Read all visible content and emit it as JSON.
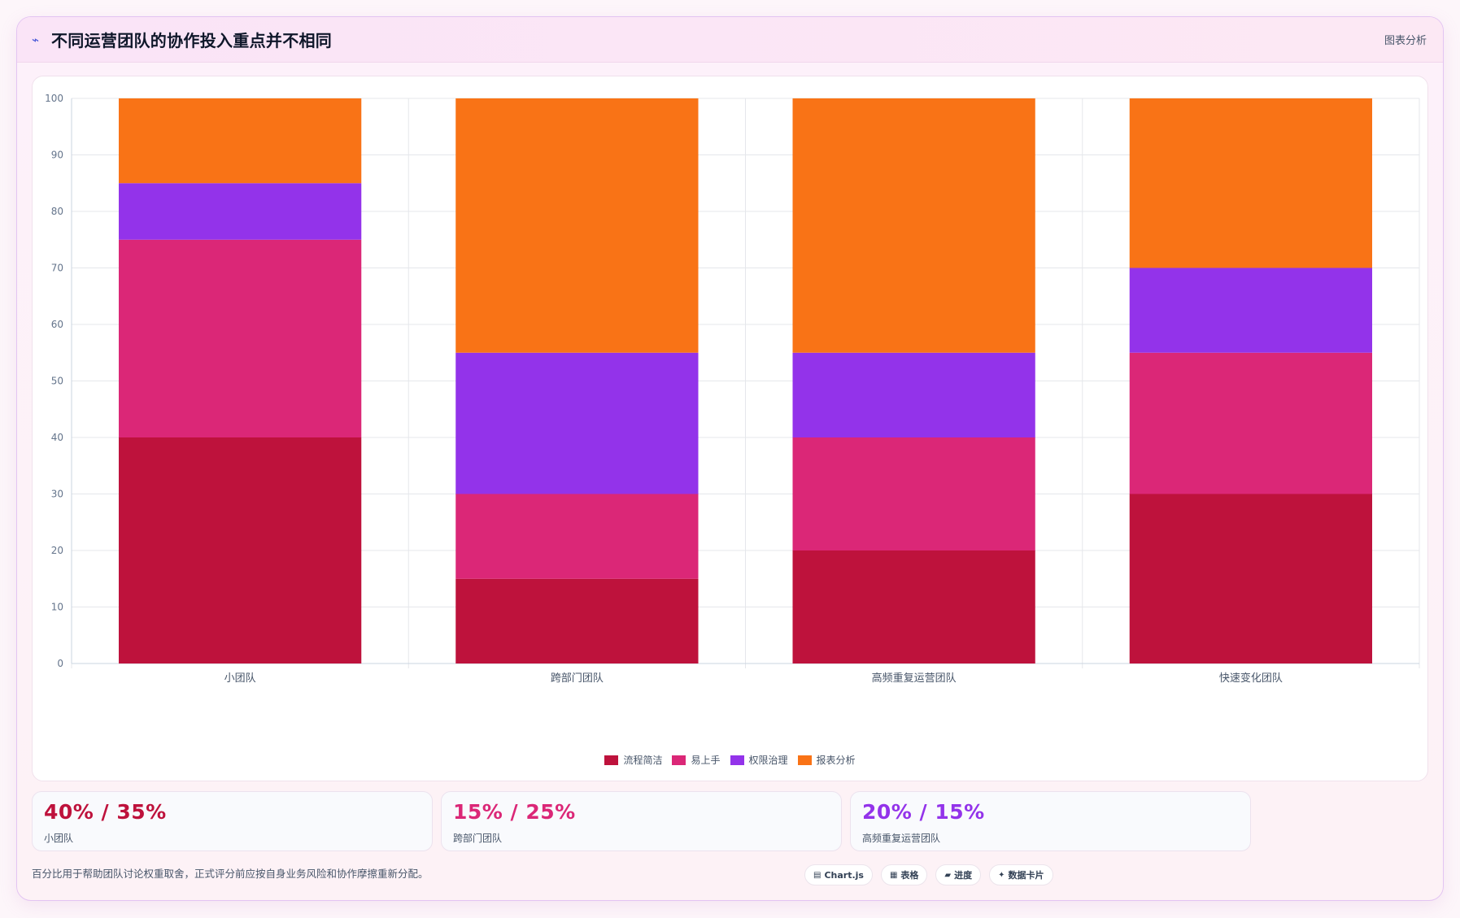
{
  "header": {
    "title": "不同运营团队的协作投入重点并不相同",
    "tag": "图表分析",
    "icon": "trend-line-icon"
  },
  "colors": {
    "series": [
      "#be123c",
      "#db2777",
      "#9333ea",
      "#f97316"
    ],
    "grid": "#e5e7eb",
    "axis_text": "#64748b"
  },
  "chart_data": {
    "type": "bar",
    "stacked": true,
    "categories": [
      "小团队",
      "跨部门团队",
      "高频重复运营团队",
      "快速变化团队"
    ],
    "series": [
      {
        "name": "流程简洁",
        "values": [
          40,
          15,
          20,
          30
        ]
      },
      {
        "name": "易上手",
        "values": [
          35,
          15,
          20,
          25
        ]
      },
      {
        "name": "权限治理",
        "values": [
          10,
          25,
          15,
          15
        ]
      },
      {
        "name": "报表分析",
        "values": [
          15,
          45,
          45,
          30
        ]
      }
    ],
    "ylim": [
      0,
      100
    ],
    "yticks": [
      0,
      10,
      20,
      30,
      40,
      50,
      60,
      70,
      80,
      90,
      100
    ],
    "grid": true,
    "legend_position": "bottom"
  },
  "stats": [
    {
      "value": "40% / 35%",
      "label": "小团队",
      "color": "#be123c"
    },
    {
      "value": "15% / 25%",
      "label": "跨部门团队",
      "color": "#db2777"
    },
    {
      "value": "20% / 15%",
      "label": "高频重复运营团队",
      "color": "#9333ea"
    }
  ],
  "footnote": "百分比用于帮助团队讨论权重取舍，正式评分前应按自身业务风险和协作摩擦重新分配。",
  "pills": [
    {
      "icon": "chart-icon",
      "glyph": "▤",
      "label": "Chart.js"
    },
    {
      "icon": "table-icon",
      "glyph": "▦",
      "label": "表格"
    },
    {
      "icon": "progress-icon",
      "glyph": "▰",
      "label": "进度"
    },
    {
      "icon": "sparkle-icon",
      "glyph": "✦",
      "label": "数据卡片"
    }
  ]
}
